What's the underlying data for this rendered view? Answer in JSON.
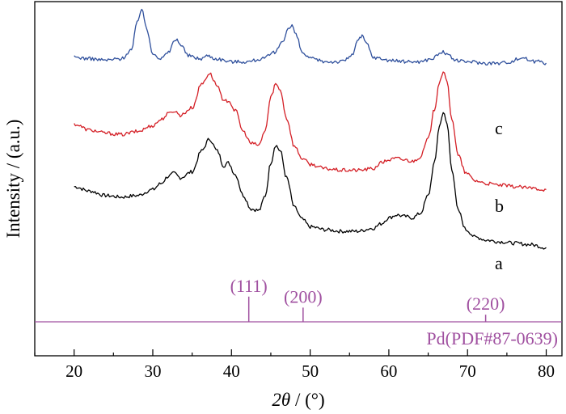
{
  "chart_data": {
    "type": "line",
    "title": "",
    "xlabel_italic": "2θ",
    "xlabel_rest": " / (°)",
    "ylabel": "Intensity / (a.u.)",
    "xlim": [
      15,
      82
    ],
    "ylim": [
      0,
      1
    ],
    "xticks": [
      20,
      30,
      40,
      50,
      60,
      70,
      80
    ],
    "xtick_labels": [
      "20",
      "30",
      "40",
      "50",
      "60",
      "70",
      "80"
    ],
    "grid": false,
    "series": [
      {
        "name": "a",
        "label": "a",
        "color": "#000000",
        "x": [
          20,
          22,
          24,
          26,
          28,
          30,
          31,
          32,
          32.7,
          33.5,
          35,
          36.2,
          37.2,
          38.2,
          39,
          39.6,
          40.5,
          41.5,
          42.5,
          43.5,
          44.3,
          45,
          45.6,
          46.2,
          47,
          48,
          49,
          50,
          52,
          54,
          56,
          58,
          59,
          60,
          61,
          62,
          63,
          64,
          65,
          65.8,
          66.4,
          66.9,
          67.4,
          68,
          68.8,
          69.8,
          71,
          72.5,
          74,
          76,
          78,
          80
        ],
        "y": [
          0.4,
          0.385,
          0.37,
          0.365,
          0.37,
          0.39,
          0.41,
          0.435,
          0.445,
          0.43,
          0.45,
          0.52,
          0.56,
          0.52,
          0.47,
          0.48,
          0.44,
          0.37,
          0.325,
          0.32,
          0.37,
          0.48,
          0.54,
          0.52,
          0.43,
          0.33,
          0.29,
          0.265,
          0.255,
          0.25,
          0.25,
          0.26,
          0.275,
          0.295,
          0.305,
          0.3,
          0.295,
          0.31,
          0.37,
          0.48,
          0.6,
          0.65,
          0.61,
          0.46,
          0.32,
          0.255,
          0.23,
          0.22,
          0.215,
          0.21,
          0.205,
          0.195
        ]
      },
      {
        "name": "b",
        "label": "b",
        "color": "#d41f26",
        "x": [
          20,
          22,
          24,
          26,
          28,
          30,
          31,
          32,
          32.7,
          33.5,
          35,
          36.2,
          37.2,
          38.2,
          39,
          39.6,
          40.5,
          41.5,
          42.5,
          43.5,
          44.3,
          45,
          45.6,
          46.2,
          47,
          48,
          49,
          50,
          52,
          54,
          56,
          58,
          59,
          60,
          61,
          62,
          63,
          64,
          65,
          65.8,
          66.4,
          66.9,
          67.4,
          68,
          68.8,
          69.8,
          71,
          72.5,
          74,
          76,
          78,
          80
        ],
        "y": [
          0.61,
          0.59,
          0.58,
          0.575,
          0.585,
          0.605,
          0.625,
          0.645,
          0.655,
          0.64,
          0.665,
          0.745,
          0.78,
          0.74,
          0.685,
          0.69,
          0.655,
          0.585,
          0.545,
          0.54,
          0.59,
          0.7,
          0.745,
          0.725,
          0.63,
          0.535,
          0.495,
          0.475,
          0.46,
          0.455,
          0.455,
          0.46,
          0.48,
          0.49,
          0.495,
          0.49,
          0.485,
          0.5,
          0.56,
          0.66,
          0.75,
          0.785,
          0.75,
          0.63,
          0.505,
          0.445,
          0.42,
          0.41,
          0.405,
          0.4,
          0.395,
          0.39
        ]
      },
      {
        "name": "c",
        "label": "c",
        "color": "#2e4f9c",
        "x": [
          20,
          22,
          24,
          26,
          27.3,
          28,
          28.6,
          29.2,
          30,
          31,
          32,
          32.6,
          33.1,
          33.6,
          34.5,
          36,
          37,
          38,
          40,
          42,
          44,
          45.5,
          46.5,
          47.2,
          47.7,
          48.2,
          49,
          50,
          52,
          54,
          55.3,
          56,
          56.6,
          57.2,
          58,
          59,
          60,
          62,
          64,
          65.5,
          66.4,
          66.9,
          67.5,
          68.5,
          69.5,
          70.5,
          72,
          74,
          75.5,
          76.5,
          77.1,
          77.8,
          78.5,
          79.2,
          80
        ],
        "y": [
          0.835,
          0.83,
          0.825,
          0.83,
          0.86,
          0.95,
          1.0,
          0.93,
          0.85,
          0.83,
          0.85,
          0.885,
          0.895,
          0.875,
          0.84,
          0.83,
          0.84,
          0.83,
          0.82,
          0.82,
          0.83,
          0.85,
          0.89,
          0.93,
          0.94,
          0.91,
          0.85,
          0.83,
          0.82,
          0.82,
          0.84,
          0.89,
          0.905,
          0.88,
          0.835,
          0.83,
          0.825,
          0.82,
          0.82,
          0.83,
          0.845,
          0.855,
          0.84,
          0.825,
          0.82,
          0.82,
          0.815,
          0.815,
          0.82,
          0.83,
          0.835,
          0.825,
          0.82,
          0.825,
          0.815
        ]
      }
    ],
    "reference": {
      "label": "Pd(PDF#87-0639)",
      "color": "#a050a0",
      "peaks": [
        {
          "x": 42.2,
          "hkl": "(111)",
          "height": 0.78
        },
        {
          "x": 49.1,
          "hkl": "(200)",
          "height": 0.44
        },
        {
          "x": 72.3,
          "hkl": "(220)",
          "height": 0.22
        }
      ]
    }
  }
}
